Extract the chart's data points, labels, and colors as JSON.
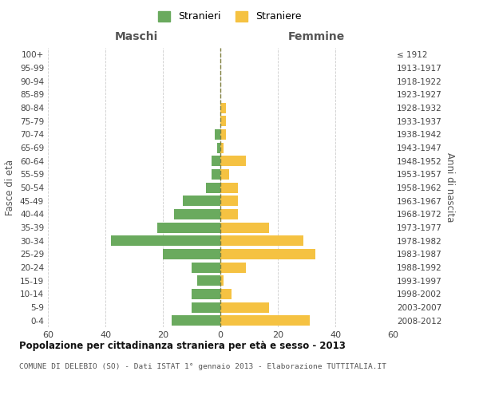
{
  "age_groups": [
    "0-4",
    "5-9",
    "10-14",
    "15-19",
    "20-24",
    "25-29",
    "30-34",
    "35-39",
    "40-44",
    "45-49",
    "50-54",
    "55-59",
    "60-64",
    "65-69",
    "70-74",
    "75-79",
    "80-84",
    "85-89",
    "90-94",
    "95-99",
    "100+"
  ],
  "birth_years": [
    "2008-2012",
    "2003-2007",
    "1998-2002",
    "1993-1997",
    "1988-1992",
    "1983-1987",
    "1978-1982",
    "1973-1977",
    "1968-1972",
    "1963-1967",
    "1958-1962",
    "1953-1957",
    "1948-1952",
    "1943-1947",
    "1938-1942",
    "1933-1937",
    "1928-1932",
    "1923-1927",
    "1918-1922",
    "1913-1917",
    "≤ 1912"
  ],
  "males": [
    17,
    10,
    10,
    8,
    10,
    20,
    38,
    22,
    16,
    13,
    5,
    3,
    3,
    1,
    2,
    0,
    0,
    0,
    0,
    0,
    0
  ],
  "females": [
    31,
    17,
    4,
    1,
    9,
    33,
    29,
    17,
    6,
    6,
    6,
    3,
    9,
    1,
    2,
    2,
    2,
    0,
    0,
    0,
    0
  ],
  "male_color": "#6aaa5e",
  "female_color": "#f5c242",
  "background_color": "#ffffff",
  "grid_color": "#cccccc",
  "title": "Popolazione per cittadinanza straniera per età e sesso - 2013",
  "subtitle": "COMUNE DI DELEBIO (SO) - Dati ISTAT 1° gennaio 2013 - Elaborazione TUTTITALIA.IT",
  "xlabel_left": "Maschi",
  "xlabel_right": "Femmine",
  "ylabel_left": "Fasce di età",
  "ylabel_right": "Anni di nascita",
  "xlim": 60,
  "legend_stranieri": "Stranieri",
  "legend_straniere": "Straniere"
}
